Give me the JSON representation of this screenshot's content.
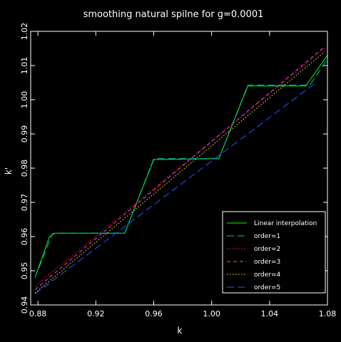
{
  "chart_data": {
    "type": "line",
    "title": "smoothing natural spilne for g=0.0001",
    "xlabel": "k",
    "ylabel": "k'",
    "xlim": [
      0.875,
      1.08
    ],
    "ylim": [
      0.94,
      1.02
    ],
    "xticks": [
      0.88,
      0.92,
      0.96,
      1.0,
      1.04,
      1.08
    ],
    "xtick_labels": [
      "0.88",
      "0.92",
      "0.96",
      "1.00",
      "1.04",
      "1.08"
    ],
    "yticks": [
      0.94,
      0.95,
      0.96,
      0.97,
      0.98,
      0.99,
      1.0,
      1.01,
      1.02
    ],
    "ytick_labels": [
      "0.94",
      "0.95",
      "0.96",
      "0.97",
      "0.98",
      "0.99",
      "1.00",
      "1.01",
      "1.02"
    ],
    "grid": false,
    "legend_position": "bottom-right",
    "background": "#000000",
    "axis_color": "#ffffff",
    "series": [
      {
        "name": "Linear interpolation",
        "color": "#00ff00",
        "dash": "solid",
        "x": [
          0.878,
          0.888,
          0.892,
          0.94,
          0.96,
          1.005,
          1.025,
          1.065,
          1.08
        ],
        "y": [
          0.948,
          0.96,
          0.961,
          0.961,
          0.9825,
          0.9828,
          1.004,
          1.004,
          1.013
        ]
      },
      {
        "name": "order=1",
        "color": "#00bbbb",
        "dash": "long",
        "x": [
          0.878,
          0.89,
          0.892,
          0.94,
          0.96,
          1.005,
          1.025,
          1.068,
          1.08
        ],
        "y": [
          0.948,
          0.9608,
          0.961,
          0.961,
          0.9828,
          0.9828,
          1.0043,
          1.0043,
          1.012
        ]
      },
      {
        "name": "order=2",
        "color": "#ff2222",
        "dash": "dotted",
        "x": [
          0.878,
          1.078
        ],
        "y": [
          0.9455,
          1.015
        ]
      },
      {
        "name": "order=3",
        "color": "#ff33ff",
        "dash": "dashed",
        "x": [
          0.878,
          1.078
        ],
        "y": [
          0.9445,
          1.0155
        ]
      },
      {
        "name": "order=4",
        "color": "#ffff00",
        "dash": "dotted",
        "x": [
          0.878,
          1.078
        ],
        "y": [
          0.9435,
          1.014
        ]
      },
      {
        "name": "order=5",
        "color": "#2255ff",
        "dash": "long",
        "x": [
          0.878,
          1.072
        ],
        "y": [
          0.9432,
          1.005
        ]
      }
    ]
  }
}
